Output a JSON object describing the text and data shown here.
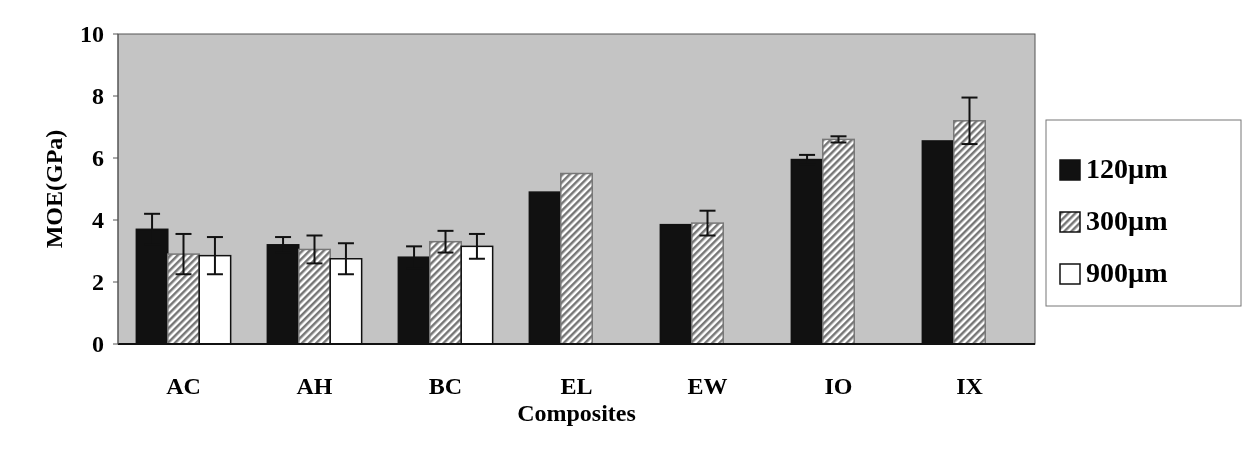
{
  "chart_data": {
    "type": "bar",
    "xlabel": "Composites",
    "ylabel": "MOE(GPa)",
    "categories": [
      "AC",
      "AH",
      "BC",
      "EL",
      "EW",
      "IO",
      "IX"
    ],
    "series": [
      {
        "name": "120µm",
        "color": "#111111",
        "values": [
          3.7,
          3.2,
          2.8,
          4.9,
          3.85,
          5.95,
          6.55
        ],
        "errors": [
          0.5,
          0.25,
          0.35,
          null,
          null,
          0.15,
          null
        ]
      },
      {
        "name": "300µm",
        "color": "#777777",
        "values": [
          2.9,
          3.05,
          3.3,
          5.5,
          3.9,
          6.6,
          7.2
        ],
        "errors": [
          0.65,
          0.45,
          0.35,
          null,
          0.4,
          0.1,
          0.75
        ]
      },
      {
        "name": "900µm",
        "color": "#ffffff",
        "values": [
          2.85,
          2.75,
          3.15,
          null,
          null,
          null,
          null
        ],
        "errors": [
          0.6,
          0.5,
          0.4,
          null,
          null,
          null,
          null
        ]
      }
    ],
    "ylim": [
      0,
      10
    ],
    "yticks": [
      0,
      2,
      4,
      6,
      8,
      10
    ],
    "grid": false,
    "legend": "right"
  }
}
